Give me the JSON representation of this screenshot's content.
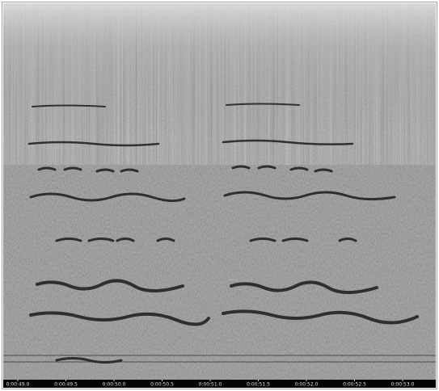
{
  "timeline": {
    "ticks": [
      "0:00:49.0",
      "0:00:49.5",
      "0:00:50.0",
      "0:00:50.5",
      "0:00:51.0",
      "0:00:51.5",
      "0:00:52.0",
      "0:00:52.5",
      "0:00:53.0"
    ]
  }
}
